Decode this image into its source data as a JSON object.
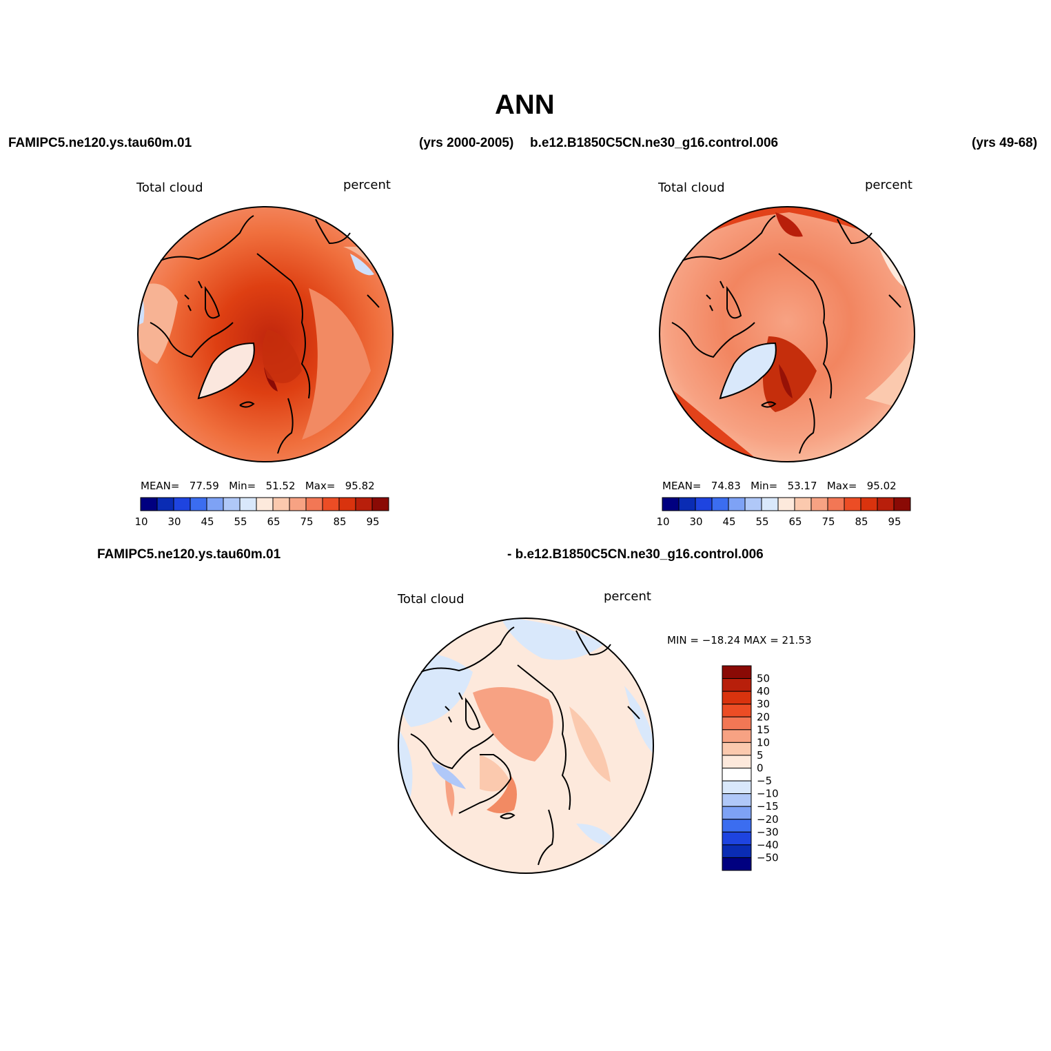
{
  "title": "ANN",
  "header": {
    "case_left": "FAMIPC5.ne120.ys.tau60m.01",
    "years_left": "(yrs 2000-2005)",
    "case_right": "b.e12.B1850C5CN.ne30_g16.control.006",
    "years_right": "(yrs 49-68)"
  },
  "diff_header": {
    "case_a": "FAMIPC5.ne120.ys.tau60m.01",
    "case_b": "- b.e12.B1850C5CN.ne30_g16.control.006"
  },
  "panels": [
    {
      "variable": "Total cloud",
      "units": "percent",
      "stats": {
        "mean_label": "MEAN=",
        "mean": "77.59",
        "min_label": "Min=",
        "min": "51.52",
        "max_label": "Max=",
        "max": "95.82"
      }
    },
    {
      "variable": "Total cloud",
      "units": "percent",
      "stats": {
        "mean_label": "MEAN=",
        "mean": "74.83",
        "min_label": "Min=",
        "min": "53.17",
        "max_label": "Max=",
        "max": "95.02"
      }
    },
    {
      "variable": "Total cloud",
      "units": "percent",
      "minmax": "MIN = −18.24 MAX =   21.53"
    }
  ],
  "colorbar_abs": {
    "colors": [
      "#000080",
      "#0a2cb4",
      "#1e44e0",
      "#3b6df0",
      "#7ea2f5",
      "#b0c8f8",
      "#d9e8fb",
      "#fde9dc",
      "#fbc9ae",
      "#f7a283",
      "#f27755",
      "#ec4d25",
      "#d9330e",
      "#b81f0b",
      "#8a0a05"
    ],
    "labels": [
      "10",
      "30",
      "45",
      "55",
      "65",
      "75",
      "85",
      "95"
    ]
  },
  "colorbar_diff": {
    "colors": [
      "#000080",
      "#0a2cb4",
      "#1e44e0",
      "#3b6df0",
      "#7ea2f5",
      "#b0c8f8",
      "#d9e8fb",
      "#fde9dc",
      "#fbc9ae",
      "#f7a283",
      "#f27755",
      "#ec4d25",
      "#d9330e",
      "#b81f0b",
      "#8a0a05"
    ],
    "labels": [
      "50",
      "40",
      "30",
      "20",
      "15",
      "10",
      "5",
      "0",
      "−5",
      "−10",
      "−15",
      "−20",
      "−30",
      "−40",
      "−50"
    ]
  }
}
